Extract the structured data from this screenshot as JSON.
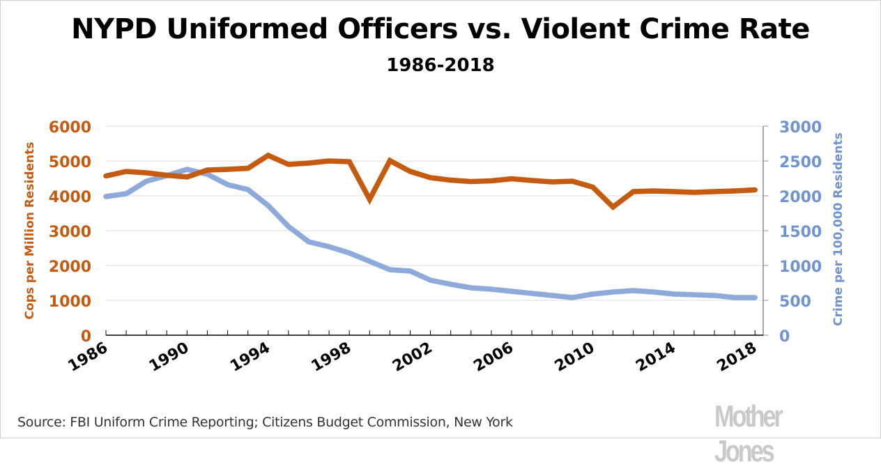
{
  "chart_data": {
    "type": "line",
    "title": "NYPD Uniformed Officers vs. Violent Crime Rate",
    "subtitle": "1986-2018",
    "x": [
      1986,
      1987,
      1988,
      1989,
      1990,
      1991,
      1992,
      1993,
      1994,
      1995,
      1996,
      1997,
      1998,
      1999,
      2000,
      2001,
      2002,
      2003,
      2004,
      2005,
      2006,
      2007,
      2008,
      2009,
      2010,
      2011,
      2012,
      2013,
      2014,
      2015,
      2016,
      2017,
      2018
    ],
    "x_tick_labels": [
      "1986",
      "1990",
      "1994",
      "1998",
      "2002",
      "2006",
      "2010",
      "2014",
      "2018"
    ],
    "series": [
      {
        "name": "Cops per Million Residents",
        "axis": "left",
        "color": "#C55A11",
        "values": [
          4570,
          4700,
          4660,
          4590,
          4540,
          4740,
          4760,
          4790,
          5160,
          4900,
          4940,
          5000,
          4980,
          3900,
          5010,
          4700,
          4520,
          4450,
          4410,
          4430,
          4490,
          4440,
          4400,
          4420,
          4250,
          3680,
          4120,
          4140,
          4120,
          4100,
          4120,
          4140,
          4170
        ]
      },
      {
        "name": "Crime per 100,000 Residents",
        "axis": "right",
        "color": "#8EAADB",
        "values": [
          1990,
          2030,
          2210,
          2290,
          2380,
          2310,
          2160,
          2090,
          1860,
          1560,
          1340,
          1270,
          1180,
          1060,
          940,
          920,
          790,
          730,
          680,
          660,
          630,
          600,
          570,
          540,
          590,
          620,
          640,
          620,
          590,
          580,
          570,
          540,
          540
        ]
      }
    ],
    "y_left": {
      "label": "Cops per Million Residents",
      "ylim": [
        0,
        6000
      ],
      "ticks": [
        "0",
        "1000",
        "2000",
        "3000",
        "4000",
        "5000",
        "6000"
      ],
      "color": "#C55A11"
    },
    "y_right": {
      "label": "Crime per 100,000 Residents",
      "ylim": [
        0,
        3000
      ],
      "ticks": [
        "0",
        "500",
        "1000",
        "1500",
        "2000",
        "2500",
        "3000"
      ],
      "color": "#6F94CF"
    },
    "grid": true,
    "legend": "none"
  },
  "footer": {
    "source": "Source: FBI Uniform Crime Reporting; Citizens Budget Commission, New York",
    "logo": "Mother Jones"
  }
}
